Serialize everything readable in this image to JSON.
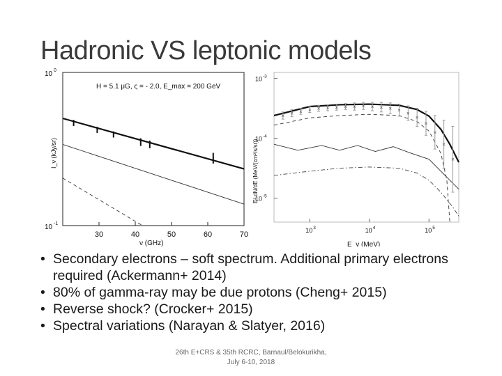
{
  "slide": {
    "title": "Hadronic VS leptonic models",
    "bullets": [
      "Secondary electrons – soft spectrum. Additional primary electrons required (Ackermann+ 2014)",
      "80% of gamma-ray may be due protons (Cheng+ 2015)",
      "Reverse shock? (Crocker+ 2015)",
      "Spectral variations (Narayan & Slatyer, 2016)"
    ],
    "footer_line1": "26th E+CRS & 35th RCRC, Barnaul/Belokurikha,",
    "footer_line2": "July 6-10, 2018"
  },
  "chart_data": [
    {
      "type": "line",
      "annotation": "H = 5.1 μG, ς = - 2.0, E_max = 200 GeV",
      "xlabel": "ν (GHz)",
      "ylabel": "I_ν (kJy/sr)",
      "x_ticks": [
        "30",
        "40",
        "50",
        "60",
        "70"
      ],
      "y_ticks": [
        "10^0",
        "10^-1"
      ],
      "xlim": [
        20,
        70
      ],
      "ylim_log10": [
        -1,
        0
      ],
      "scale_y": "log",
      "series": [
        {
          "style": "thick-solid",
          "x": [
            20,
            70
          ],
          "log10_y": [
            -0.3,
            -0.63
          ]
        },
        {
          "style": "thin-solid",
          "x": [
            20,
            70
          ],
          "log10_y": [
            -0.47,
            -0.86
          ]
        },
        {
          "style": "dashed",
          "x": [
            20,
            42
          ],
          "log10_y": [
            -0.69,
            -1.0
          ]
        }
      ],
      "points": {
        "x": [
          23,
          29.5,
          34,
          41.5,
          44,
          61.5
        ],
        "log10_y": [
          -0.33,
          -0.375,
          -0.405,
          -0.455,
          -0.47,
          -0.56
        ],
        "err": [
          0.02,
          0.02,
          0.02,
          0.025,
          0.025,
          0.035
        ]
      }
    },
    {
      "type": "line",
      "xlabel": "E_γ (MeV)",
      "ylabel": "E² dN/dE (MeV/(cm²/s/sr))",
      "x_ticks": [
        "10^3",
        "10^4",
        "10^5"
      ],
      "y_ticks": [
        "10^-3",
        "10^-4",
        "10^-5"
      ],
      "scale_x": "log",
      "scale_y": "log",
      "xlim_log10": [
        2.4,
        5.5
      ],
      "ylim_log10": [
        -5.4,
        -2.9
      ],
      "series": [
        {
          "style": "thick-solid",
          "log10_x": [
            2.4,
            3.0,
            3.5,
            4.0,
            4.5,
            4.8,
            5.0,
            5.2,
            5.35,
            5.5
          ],
          "log10_y": [
            -3.62,
            -3.47,
            -3.44,
            -3.43,
            -3.45,
            -3.52,
            -3.63,
            -3.85,
            -4.1,
            -4.4
          ]
        },
        {
          "style": "dashed",
          "log10_x": [
            2.4,
            3.0,
            3.5,
            4.0,
            4.5,
            4.8,
            5.0,
            5.2,
            5.3,
            5.35
          ],
          "log10_y": [
            -3.78,
            -3.66,
            -3.62,
            -3.6,
            -3.62,
            -3.72,
            -3.88,
            -4.25,
            -4.7,
            -5.4
          ]
        },
        {
          "style": "thin-solid",
          "log10_x": [
            2.4,
            2.8,
            3.2,
            3.5,
            3.8,
            4.1,
            4.4,
            4.7,
            5.0,
            5.2,
            5.35,
            5.5
          ],
          "log10_y": [
            -4.1,
            -4.2,
            -4.12,
            -4.2,
            -4.12,
            -4.22,
            -4.14,
            -4.25,
            -4.35,
            -4.55,
            -4.7,
            -4.85
          ]
        },
        {
          "style": "dash-dot",
          "log10_x": [
            2.4,
            3.0,
            3.5,
            4.0,
            4.5,
            4.8,
            5.0,
            5.2,
            5.4,
            5.5
          ],
          "log10_y": [
            -4.62,
            -4.55,
            -4.5,
            -4.48,
            -4.5,
            -4.58,
            -4.7,
            -4.9,
            -5.15,
            -5.3
          ]
        }
      ],
      "points": {
        "log10_x": [
          2.55,
          2.7,
          2.85,
          3.0,
          3.15,
          3.3,
          3.45,
          3.6,
          3.75,
          3.9,
          4.05,
          4.2,
          4.35,
          4.5,
          4.65,
          4.8,
          4.95,
          5.1,
          5.25,
          5.4
        ],
        "log10_y": [
          -3.62,
          -3.58,
          -3.55,
          -3.52,
          -3.5,
          -3.49,
          -3.48,
          -3.47,
          -3.47,
          -3.46,
          -3.47,
          -3.48,
          -3.5,
          -3.53,
          -3.58,
          -3.65,
          -3.75,
          -3.9,
          -4.1,
          -4.35
        ],
        "err": [
          0.06,
          0.06,
          0.05,
          0.05,
          0.05,
          0.05,
          0.05,
          0.05,
          0.06,
          0.06,
          0.07,
          0.08,
          0.09,
          0.1,
          0.12,
          0.15,
          0.2,
          0.28,
          0.4,
          0.55
        ]
      }
    }
  ]
}
